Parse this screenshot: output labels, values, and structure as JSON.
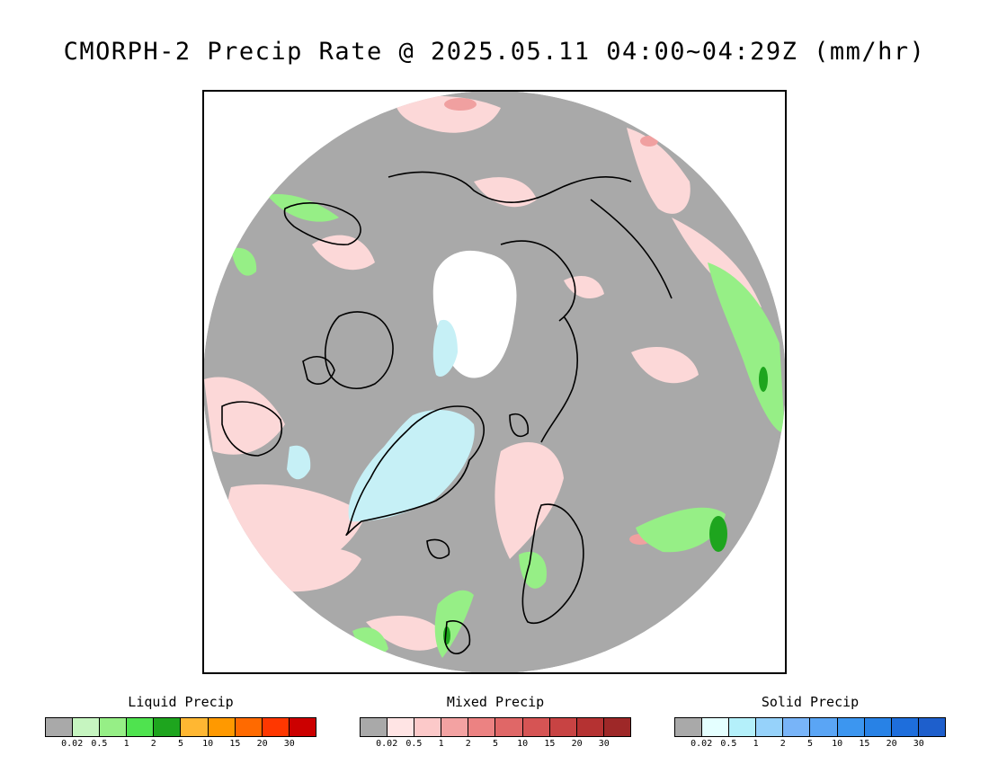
{
  "title": "CMORPH-2 Precip Rate @ 2025.05.11 04:00~04:29Z (mm/hr)",
  "map": {
    "projection": "north polar stereographic",
    "background_color": "#a9a9a9",
    "no_data_color": "#ffffff",
    "coastline_color": "#000000"
  },
  "legends": [
    {
      "title": "Liquid Precip",
      "colors": [
        "#a9a9a9",
        "#c6f5c0",
        "#96ef86",
        "#4fe34f",
        "#1ea51e",
        "#ffb732",
        "#ff9900",
        "#ff6a00",
        "#ff3700",
        "#cc0000"
      ],
      "ticks": [
        "0.02",
        "0.5",
        "1",
        "2",
        "5",
        "10",
        "15",
        "20",
        "30"
      ]
    },
    {
      "title": "Mixed Precip",
      "colors": [
        "#a9a9a9",
        "#ffe4e4",
        "#fcc9c9",
        "#f3a2a2",
        "#ec8282",
        "#e06767",
        "#d65454",
        "#c84343",
        "#b53232",
        "#9e2828"
      ],
      "ticks": [
        "0.02",
        "0.5",
        "1",
        "2",
        "5",
        "10",
        "15",
        "20",
        "30"
      ]
    },
    {
      "title": "Solid Precip",
      "colors": [
        "#a9a9a9",
        "#e4ffff",
        "#b4f0fa",
        "#96d2fa",
        "#78b4f8",
        "#5aa5f5",
        "#3c96f0",
        "#2882e6",
        "#1e6edc",
        "#1e5fcc"
      ],
      "ticks": [
        "0.02",
        "0.5",
        "1",
        "2",
        "5",
        "10",
        "15",
        "20",
        "30"
      ]
    }
  ]
}
